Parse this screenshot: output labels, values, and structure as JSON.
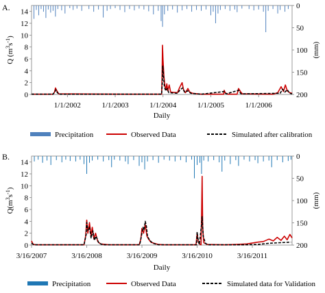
{
  "chart_data": [
    {
      "panel_label": "A.",
      "type": "line",
      "xlabel": "Daily",
      "ylabel_left_base": "Q (m",
      "ylabel_left_sup1": "3",
      "ylabel_left_mid": "s",
      "ylabel_left_sup2": "-1",
      "ylabel_left_end": ")",
      "ylabel_right": "(mm)",
      "ylim_left": [
        0,
        15
      ],
      "left_ticks": [
        "0",
        "2",
        "4",
        "6",
        "8",
        "10",
        "12",
        "14"
      ],
      "ylim_right_inverted": [
        0,
        200
      ],
      "right_ticks": [
        "0",
        "50",
        "100",
        "150",
        "200"
      ],
      "x_ticks": [
        "1/1/2002",
        "1/1/2003",
        "1/1/2004",
        "1/1/2005",
        "1/1/2006"
      ],
      "x_tick_positions_years": [
        0,
        1,
        2,
        3,
        4
      ],
      "x_range_years": [
        -0.75,
        4.7
      ],
      "grid": false,
      "legend_position": "bottom",
      "precip_color": "#4f81bd",
      "series": [
        {
          "name": "Observed Data",
          "color": "#cc0000",
          "style": "solid",
          "points": [
            [
              -0.75,
              0.05
            ],
            [
              -0.3,
              0.05
            ],
            [
              -0.27,
              0.4
            ],
            [
              -0.25,
              1.1
            ],
            [
              -0.22,
              0.6
            ],
            [
              -0.18,
              0.1
            ],
            [
              1.2,
              0.05
            ],
            [
              1.97,
              0.05
            ],
            [
              1.98,
              2.5
            ],
            [
              1.99,
              8.3
            ],
            [
              2.0,
              6.0
            ],
            [
              2.02,
              3.0
            ],
            [
              2.04,
              1.5
            ],
            [
              2.06,
              0.8
            ],
            [
              2.08,
              1.8
            ],
            [
              2.1,
              0.6
            ],
            [
              2.13,
              1.6
            ],
            [
              2.16,
              0.4
            ],
            [
              2.3,
              0.3
            ],
            [
              2.35,
              1.2
            ],
            [
              2.4,
              2.0
            ],
            [
              2.43,
              0.8
            ],
            [
              2.47,
              0.3
            ],
            [
              2.52,
              1.0
            ],
            [
              2.56,
              0.4
            ],
            [
              2.62,
              0.2
            ],
            [
              2.8,
              0.05
            ],
            [
              3.27,
              0.05
            ],
            [
              3.28,
              0.7
            ],
            [
              3.3,
              0.3
            ],
            [
              3.35,
              0.05
            ],
            [
              3.55,
              0.05
            ],
            [
              3.58,
              1.0
            ],
            [
              3.62,
              0.5
            ],
            [
              3.66,
              0.1
            ],
            [
              4.3,
              0.05
            ],
            [
              4.4,
              0.3
            ],
            [
              4.47,
              1.3
            ],
            [
              4.52,
              0.5
            ],
            [
              4.56,
              1.6
            ],
            [
              4.6,
              0.6
            ],
            [
              4.65,
              0.3
            ],
            [
              4.7,
              0.2
            ]
          ]
        },
        {
          "name": "Simulated after calibration",
          "color": "#000000",
          "style": "dashed",
          "points": [
            [
              -0.75,
              0.05
            ],
            [
              -0.3,
              0.05
            ],
            [
              -0.26,
              0.5
            ],
            [
              -0.24,
              0.8
            ],
            [
              -0.21,
              0.3
            ],
            [
              -0.17,
              0.05
            ],
            [
              1.97,
              0.05
            ],
            [
              1.985,
              2.0
            ],
            [
              1.995,
              4.8
            ],
            [
              2.01,
              3.2
            ],
            [
              2.03,
              1.2
            ],
            [
              2.06,
              0.6
            ],
            [
              2.09,
              1.0
            ],
            [
              2.12,
              0.3
            ],
            [
              2.3,
              0.2
            ],
            [
              2.36,
              0.8
            ],
            [
              2.41,
              1.1
            ],
            [
              2.45,
              0.4
            ],
            [
              2.52,
              0.6
            ],
            [
              2.58,
              0.2
            ],
            [
              2.8,
              0.05
            ],
            [
              3.28,
              0.5
            ],
            [
              3.32,
              0.1
            ],
            [
              3.58,
              0.7
            ],
            [
              3.63,
              0.1
            ],
            [
              4.45,
              0.2
            ],
            [
              4.5,
              0.9
            ],
            [
              4.55,
              0.4
            ],
            [
              4.6,
              0.8
            ],
            [
              4.65,
              0.2
            ],
            [
              4.7,
              0.1
            ]
          ]
        }
      ],
      "precipitation_mm": [
        [
          -0.7,
          30
        ],
        [
          -0.65,
          10
        ],
        [
          -0.6,
          22
        ],
        [
          -0.55,
          8
        ],
        [
          -0.5,
          14
        ],
        [
          -0.45,
          28
        ],
        [
          -0.4,
          9
        ],
        [
          -0.35,
          16
        ],
        [
          -0.3,
          12
        ],
        [
          -0.25,
          25
        ],
        [
          -0.2,
          8
        ],
        [
          -0.12,
          11
        ],
        [
          -0.05,
          18
        ],
        [
          0.05,
          6
        ],
        [
          0.12,
          10
        ],
        [
          0.2,
          7
        ],
        [
          0.3,
          12
        ],
        [
          0.45,
          8
        ],
        [
          0.55,
          14
        ],
        [
          0.65,
          9
        ],
        [
          0.75,
          27
        ],
        [
          0.83,
          12
        ],
        [
          0.9,
          8
        ],
        [
          1.0,
          6
        ],
        [
          1.1,
          10
        ],
        [
          1.2,
          15
        ],
        [
          1.3,
          8
        ],
        [
          1.4,
          11
        ],
        [
          1.5,
          7
        ],
        [
          1.6,
          9
        ],
        [
          1.7,
          13
        ],
        [
          1.8,
          20
        ],
        [
          1.9,
          12
        ],
        [
          1.96,
          35
        ],
        [
          1.99,
          48
        ],
        [
          2.03,
          20
        ],
        [
          2.1,
          12
        ],
        [
          2.2,
          9
        ],
        [
          2.3,
          16
        ],
        [
          2.4,
          11
        ],
        [
          2.5,
          8
        ],
        [
          2.6,
          14
        ],
        [
          2.7,
          10
        ],
        [
          2.8,
          12
        ],
        [
          2.9,
          9
        ],
        [
          3.0,
          22
        ],
        [
          3.05,
          14
        ],
        [
          3.1,
          40
        ],
        [
          3.15,
          18
        ],
        [
          3.2,
          10
        ],
        [
          3.3,
          8
        ],
        [
          3.4,
          12
        ],
        [
          3.5,
          9
        ],
        [
          3.55,
          15
        ],
        [
          3.65,
          7
        ],
        [
          3.8,
          8
        ],
        [
          3.9,
          11
        ],
        [
          4.0,
          9
        ],
        [
          4.1,
          14
        ],
        [
          4.15,
          60
        ],
        [
          4.2,
          12
        ],
        [
          4.3,
          8
        ],
        [
          4.4,
          18
        ],
        [
          4.45,
          10
        ],
        [
          4.55,
          14
        ],
        [
          4.62,
          8
        ]
      ]
    },
    {
      "panel_label": "B.",
      "type": "line",
      "xlabel": "Daily",
      "ylabel_left_base": "Q(m",
      "ylabel_left_sup1": "3",
      "ylabel_left_mid": "s",
      "ylabel_left_sup2": "-1",
      "ylabel_left_end": ")",
      "ylabel_right": "(mm)",
      "ylim_left": [
        0,
        15
      ],
      "left_ticks": [
        "0",
        "2",
        "4",
        "6",
        "8",
        "10",
        "12",
        "14"
      ],
      "ylim_right_inverted": [
        0,
        200
      ],
      "right_ticks": [
        "0",
        "50",
        "100",
        "150",
        "200"
      ],
      "x_ticks": [
        "3/16/2007",
        "3/16/2008",
        "3/16/2009",
        "3/16/2010",
        "3/16/2011"
      ],
      "x_tick_positions_years": [
        0,
        1,
        2,
        3,
        4
      ],
      "x_range_years": [
        0,
        4.72
      ],
      "grid": false,
      "legend_position": "bottom",
      "precip_color": "#1f77b4",
      "series": [
        {
          "name": "Observed Data",
          "color": "#cc0000",
          "style": "solid",
          "points": [
            [
              0.0,
              0.7
            ],
            [
              0.03,
              0.1
            ],
            [
              0.1,
              0.05
            ],
            [
              0.95,
              0.05
            ],
            [
              0.98,
              1.5
            ],
            [
              1.0,
              4.2
            ],
            [
              1.02,
              2.0
            ],
            [
              1.05,
              3.8
            ],
            [
              1.08,
              1.5
            ],
            [
              1.1,
              3.0
            ],
            [
              1.13,
              1.0
            ],
            [
              1.16,
              2.0
            ],
            [
              1.2,
              0.6
            ],
            [
              1.25,
              0.2
            ],
            [
              1.4,
              0.05
            ],
            [
              1.95,
              0.05
            ],
            [
              1.98,
              1.0
            ],
            [
              2.0,
              2.8
            ],
            [
              2.03,
              2.0
            ],
            [
              2.06,
              3.5
            ],
            [
              2.09,
              1.5
            ],
            [
              2.12,
              1.0
            ],
            [
              2.16,
              0.5
            ],
            [
              2.22,
              0.3
            ],
            [
              2.3,
              0.1
            ],
            [
              2.4,
              0.05
            ],
            [
              2.98,
              0.05
            ],
            [
              3.0,
              2.0
            ],
            [
              3.02,
              0.6
            ],
            [
              3.04,
              0.2
            ],
            [
              3.07,
              0.05
            ],
            [
              3.08,
              5.0
            ],
            [
              3.09,
              11.6
            ],
            [
              3.1,
              3.0
            ],
            [
              3.12,
              0.4
            ],
            [
              3.18,
              0.1
            ],
            [
              3.5,
              0.05
            ],
            [
              3.7,
              0.1
            ],
            [
              3.9,
              0.2
            ],
            [
              4.1,
              0.5
            ],
            [
              4.2,
              0.6
            ],
            [
              4.3,
              1.0
            ],
            [
              4.38,
              0.7
            ],
            [
              4.45,
              1.3
            ],
            [
              4.52,
              0.8
            ],
            [
              4.58,
              1.5
            ],
            [
              4.63,
              0.9
            ],
            [
              4.68,
              1.8
            ],
            [
              4.72,
              1.2
            ]
          ]
        },
        {
          "name": "Simulated data for Validation",
          "color": "#000000",
          "style": "dashed",
          "points": [
            [
              0.0,
              0.3
            ],
            [
              0.05,
              0.05
            ],
            [
              0.95,
              0.05
            ],
            [
              0.99,
              1.8
            ],
            [
              1.0,
              3.8
            ],
            [
              1.02,
              2.5
            ],
            [
              1.05,
              3.0
            ],
            [
              1.08,
              1.2
            ],
            [
              1.11,
              2.4
            ],
            [
              1.14,
              0.8
            ],
            [
              1.17,
              1.5
            ],
            [
              1.22,
              0.3
            ],
            [
              1.3,
              0.05
            ],
            [
              1.96,
              0.05
            ],
            [
              1.99,
              1.5
            ],
            [
              2.02,
              3.0
            ],
            [
              2.04,
              2.5
            ],
            [
              2.06,
              4.0
            ],
            [
              2.08,
              3.2
            ],
            [
              2.1,
              1.5
            ],
            [
              2.14,
              0.8
            ],
            [
              2.2,
              0.3
            ],
            [
              2.3,
              0.05
            ],
            [
              2.99,
              0.05
            ],
            [
              3.0,
              2.2
            ],
            [
              3.02,
              0.8
            ],
            [
              3.04,
              0.1
            ],
            [
              3.08,
              3.5
            ],
            [
              3.09,
              4.8
            ],
            [
              3.11,
              1.5
            ],
            [
              3.15,
              0.3
            ],
            [
              3.2,
              0.05
            ],
            [
              3.8,
              0.05
            ],
            [
              4.1,
              0.1
            ],
            [
              4.3,
              0.3
            ],
            [
              4.5,
              0.4
            ],
            [
              4.7,
              0.5
            ]
          ]
        }
      ],
      "precipitation_mm": [
        [
          0.05,
          12
        ],
        [
          0.12,
          8
        ],
        [
          0.2,
          15
        ],
        [
          0.28,
          10
        ],
        [
          0.35,
          20
        ],
        [
          0.45,
          9
        ],
        [
          0.55,
          14
        ],
        [
          0.62,
          8
        ],
        [
          0.7,
          11
        ],
        [
          0.8,
          12
        ],
        [
          0.88,
          8
        ],
        [
          0.95,
          18
        ],
        [
          1.0,
          40
        ],
        [
          1.05,
          15
        ],
        [
          1.1,
          10
        ],
        [
          1.2,
          8
        ],
        [
          1.3,
          12
        ],
        [
          1.4,
          9
        ],
        [
          1.45,
          25
        ],
        [
          1.5,
          8
        ],
        [
          1.6,
          10
        ],
        [
          1.7,
          12
        ],
        [
          1.75,
          18
        ],
        [
          1.85,
          9
        ],
        [
          1.95,
          22
        ],
        [
          2.0,
          14
        ],
        [
          2.05,
          30
        ],
        [
          2.1,
          12
        ],
        [
          2.2,
          9
        ],
        [
          2.3,
          15
        ],
        [
          2.4,
          8
        ],
        [
          2.5,
          10
        ],
        [
          2.6,
          12
        ],
        [
          2.7,
          9
        ],
        [
          2.8,
          14
        ],
        [
          2.9,
          8
        ],
        [
          2.95,
          50
        ],
        [
          3.0,
          20
        ],
        [
          3.05,
          15
        ],
        [
          3.08,
          40
        ],
        [
          3.12,
          10
        ],
        [
          3.2,
          12
        ],
        [
          3.3,
          9
        ],
        [
          3.4,
          14
        ],
        [
          3.45,
          35
        ],
        [
          3.5,
          10
        ],
        [
          3.6,
          18
        ],
        [
          3.7,
          9
        ],
        [
          3.75,
          22
        ],
        [
          3.85,
          8
        ],
        [
          3.95,
          12
        ],
        [
          4.05,
          9
        ],
        [
          4.1,
          16
        ],
        [
          4.2,
          12
        ],
        [
          4.3,
          10
        ],
        [
          4.35,
          25
        ],
        [
          4.45,
          9
        ],
        [
          4.55,
          14
        ],
        [
          4.65,
          11
        ],
        [
          4.7,
          8
        ]
      ]
    }
  ]
}
